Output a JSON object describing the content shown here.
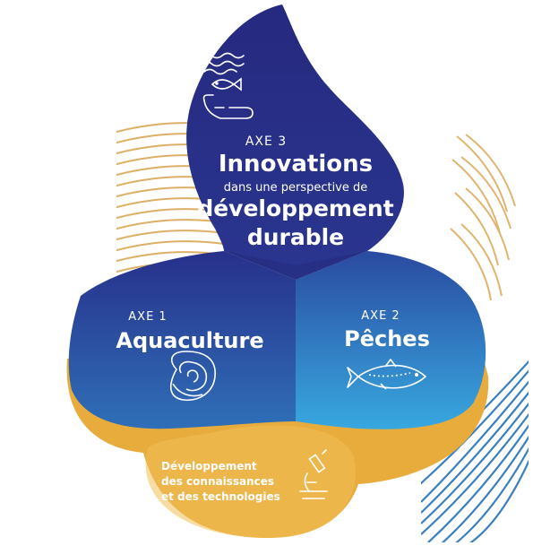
{
  "axes": {
    "axe3": {
      "label": "AXE 3",
      "title": "Innovations",
      "subtitle": "dans une perspective de",
      "line2": "développement",
      "line3": "durable",
      "icon": "fish-in-hand-waves-icon"
    },
    "axe1": {
      "label": "AXE 1",
      "title": "Aquaculture",
      "icon": "oyster-icon"
    },
    "axe2": {
      "label": "AXE 2",
      "title": "Pêches",
      "icon": "fish-icon"
    },
    "base": {
      "lines": [
        "Développement",
        "des connaissances",
        "et des technologies"
      ],
      "icon": "microscope-icon"
    }
  },
  "colors": {
    "navy": "#27308a",
    "mid_blue": "#2a55a6",
    "light_blue": "#37a3dc",
    "yellow": "#e8ac3c",
    "yellow_light": "#f0bf58",
    "stripes_gold": "#d9a24a",
    "stripes_blue": "#3a7fbf"
  }
}
